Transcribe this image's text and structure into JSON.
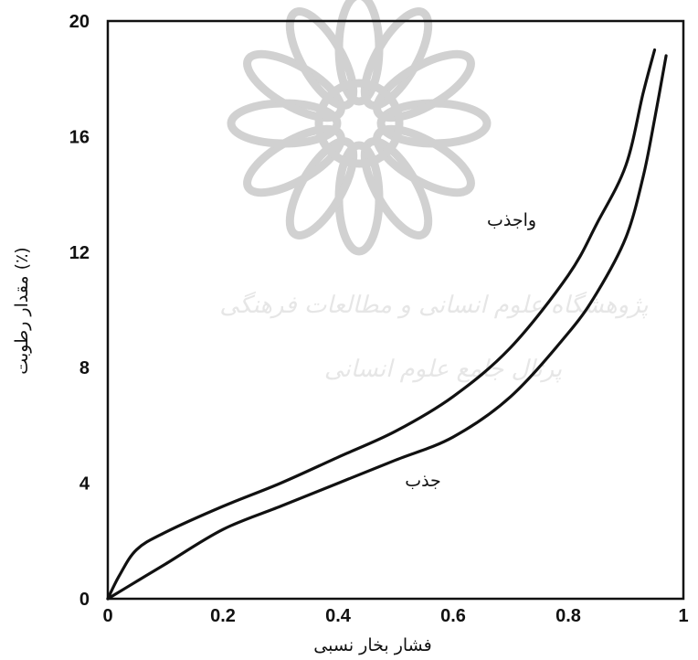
{
  "chart_data": {
    "type": "line",
    "xlabel": "فشار بخار نسبی",
    "ylabel": "مقدار رطوبت (٪)",
    "xlim": [
      0,
      1
    ],
    "ylim": [
      0,
      20
    ],
    "xticks": [
      "0",
      "0.2",
      "0.4",
      "0.6",
      "0.8",
      "1"
    ],
    "yticks": [
      "0",
      "4",
      "8",
      "12",
      "16",
      "20"
    ],
    "grid": false,
    "series": [
      {
        "name": "واجذب",
        "x": [
          0,
          0.02,
          0.05,
          0.1,
          0.2,
          0.3,
          0.4,
          0.5,
          0.6,
          0.7,
          0.8,
          0.85,
          0.9,
          0.93,
          0.95
        ],
        "y": [
          0,
          0.8,
          1.7,
          2.3,
          3.2,
          4.0,
          4.9,
          5.8,
          7.0,
          8.7,
          11.2,
          13.0,
          15.0,
          17.5,
          19.0
        ]
      },
      {
        "name": "جذب",
        "x": [
          0,
          0.05,
          0.1,
          0.2,
          0.3,
          0.4,
          0.5,
          0.6,
          0.7,
          0.8,
          0.85,
          0.9,
          0.93,
          0.95,
          0.97
        ],
        "y": [
          0,
          0.6,
          1.2,
          2.4,
          3.2,
          4.0,
          4.8,
          5.6,
          7.0,
          9.2,
          10.6,
          12.5,
          14.6,
          16.6,
          18.8
        ]
      }
    ],
    "annotations": [
      "واجذب",
      "جذب"
    ]
  },
  "watermark": {
    "line1": "پژوهشگاه علوم انسانی و مطالعات فرهنگی",
    "line2": "پرتال جامع علوم انسانی"
  }
}
